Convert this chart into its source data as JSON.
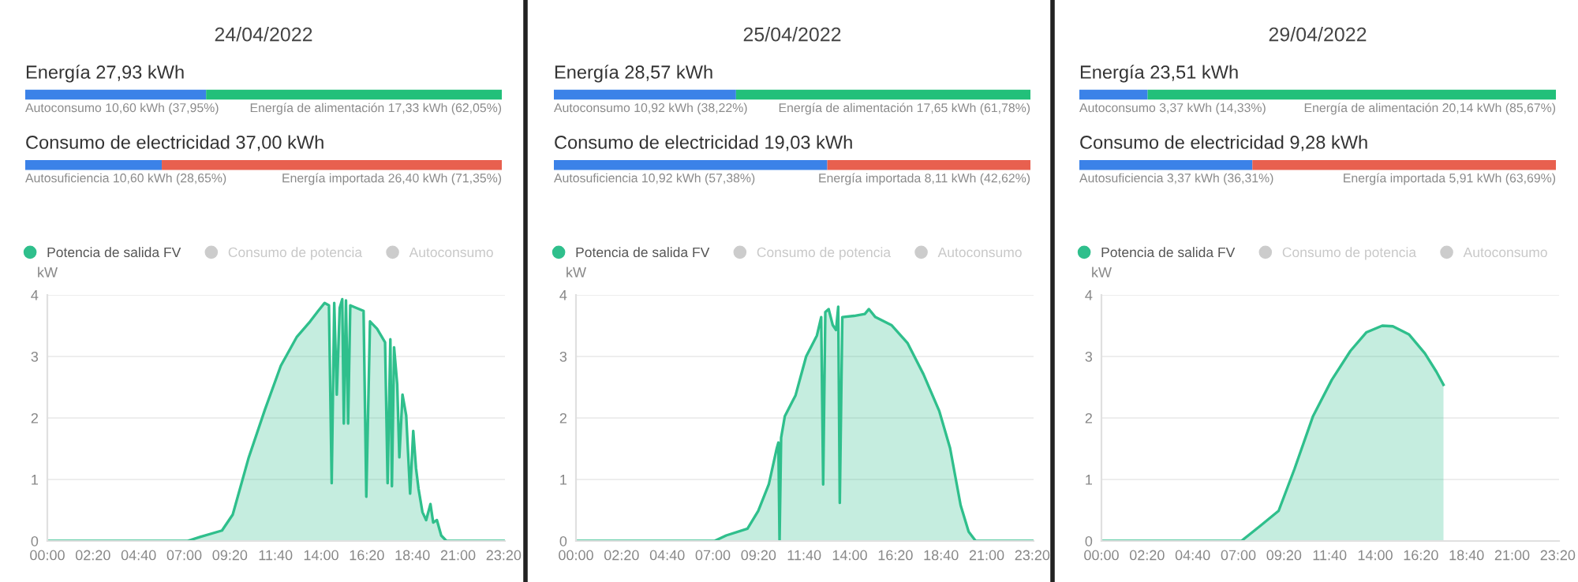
{
  "chart_data": [
    {
      "type": "bar",
      "title": "24/04/2022",
      "orientation": "horizontal",
      "stacked": true,
      "categories": [
        null,
        null
      ],
      "tick_labels": false,
      "totals": [
        "Energía 27,93 kWh",
        "Consumo de electricidad 37,00 kWh"
      ],
      "series": [
        {
          "color": "#3b82e8",
          "values": [
            37.95,
            28.65
          ],
          "value_labels": [
            "Autoconsumo 10,60 kWh (37,95%)",
            "Autosuficiencia 10,60 kWh (28,65%)"
          ]
        },
        {
          "colors": [
            "#22c07a",
            "#e8604f"
          ],
          "values": [
            62.05,
            71.35
          ],
          "value_labels": [
            "Energía de alimentación 17,33 kWh (62,05%)",
            "Energía importada 26,40 kWh (71,35%)"
          ]
        }
      ]
    },
    {
      "type": "area",
      "ylabel": "kW",
      "xlim": [
        0,
        23.4
      ],
      "ylim": [
        0,
        4
      ],
      "yticks": [
        0,
        1,
        2,
        3,
        4
      ],
      "grid": "y",
      "legend": "top left",
      "xticks": [
        {
          "value": 0,
          "label": "00:00"
        },
        {
          "value": 2.333,
          "label": "02:20"
        },
        {
          "value": 4.667,
          "label": "04:40"
        },
        {
          "value": 7,
          "label": "07:00"
        },
        {
          "value": 9.333,
          "label": "09:20"
        },
        {
          "value": 11.667,
          "label": "11:40"
        },
        {
          "value": 14,
          "label": "14:00"
        },
        {
          "value": 16.333,
          "label": "16:20"
        },
        {
          "value": 18.667,
          "label": "18:40"
        },
        {
          "value": 21,
          "label": "21:00"
        },
        {
          "value": 23.333,
          "label": "23:20"
        }
      ],
      "series": [
        {
          "name": "Potencia de salida FV",
          "color": "#2fbf8c",
          "x": [
            0,
            7.16,
            7.84,
            8.93,
            9.48,
            10.3,
            11.12,
            11.94,
            12.76,
            13.44,
            13.85,
            14.18,
            14.4,
            14.54,
            14.67,
            14.8,
            14.95,
            15.08,
            15.16,
            15.27,
            15.38,
            15.49,
            16.17,
            16.31,
            16.5,
            16.86,
            17.27,
            17.4,
            17.54,
            17.62,
            17.73,
            17.89,
            18.0,
            18.16,
            18.35,
            18.55,
            18.71,
            18.85,
            18.98,
            19.18,
            19.37,
            19.59,
            19.73,
            19.92,
            20.14,
            20.41,
            23.33
          ],
          "values": [
            0,
            0,
            0.07,
            0.17,
            0.43,
            1.36,
            2.13,
            2.85,
            3.32,
            3.57,
            3.74,
            3.87,
            3.83,
            0.94,
            3.87,
            2.38,
            3.79,
            3.93,
            1.91,
            3.91,
            1.91,
            3.83,
            3.74,
            0.72,
            3.57,
            3.45,
            3.23,
            0.94,
            3.28,
            0.89,
            3.15,
            2.55,
            1.36,
            2.38,
            2.04,
            0.77,
            1.79,
            1.19,
            0.85,
            0.47,
            0.34,
            0.6,
            0.3,
            0.34,
            0.09,
            0,
            0
          ]
        },
        {
          "name": "Consumo de potencia",
          "color": "#cccccc"
        },
        {
          "name": "Autoconsumo",
          "color": "#cccccc"
        }
      ]
    },
    {
      "type": "bar",
      "title": "25/04/2022",
      "orientation": "horizontal",
      "stacked": true,
      "categories": [
        null,
        null
      ],
      "tick_labels": false,
      "totals": [
        "Energía 28,57 kWh",
        "Consumo de electricidad 19,03 kWh"
      ],
      "series": [
        {
          "color": "#3b82e8",
          "values": [
            38.22,
            57.38
          ],
          "value_labels": [
            "Autoconsumo 10,92 kWh (38,22%)",
            "Autosuficiencia 10,92 kWh (57,38%)"
          ]
        },
        {
          "colors": [
            "#22c07a",
            "#e8604f"
          ],
          "values": [
            61.78,
            42.62
          ],
          "value_labels": [
            "Energía de alimentación 17,65 kWh (61,78%)",
            "Energía importada 8,11 kWh (42,62%)"
          ]
        }
      ]
    },
    {
      "type": "area",
      "ylabel": "kW",
      "xlim": [
        0,
        23.4
      ],
      "ylim": [
        0,
        4
      ],
      "yticks": [
        0,
        1,
        2,
        3,
        4
      ],
      "grid": "y",
      "legend": "top left",
      "xticks": [
        {
          "value": 0,
          "label": "00:00"
        },
        {
          "value": 2.333,
          "label": "02:20"
        },
        {
          "value": 4.667,
          "label": "04:40"
        },
        {
          "value": 7,
          "label": "07:00"
        },
        {
          "value": 9.333,
          "label": "09:20"
        },
        {
          "value": 11.667,
          "label": "11:40"
        },
        {
          "value": 14,
          "label": "14:00"
        },
        {
          "value": 16.333,
          "label": "16:20"
        },
        {
          "value": 18.667,
          "label": "18:40"
        },
        {
          "value": 21,
          "label": "21:00"
        },
        {
          "value": 23.333,
          "label": "23:20"
        }
      ],
      "series": [
        {
          "name": "Potencia de salida FV",
          "color": "#2fbf8c",
          "x": [
            0,
            7.08,
            7.68,
            8.77,
            9.32,
            9.86,
            10.27,
            10.35,
            10.41,
            10.49,
            10.68,
            11.23,
            11.77,
            12.32,
            12.54,
            12.64,
            12.75,
            12.92,
            13.13,
            13.3,
            13.41,
            13.49,
            13.62,
            14.22,
            14.77,
            14.98,
            15.31,
            16.13,
            16.95,
            17.77,
            18.58,
            19.13,
            19.67,
            20.08,
            20.44,
            23.33
          ],
          "values": [
            0,
            0,
            0.09,
            0.2,
            0.49,
            0.92,
            1.51,
            1.6,
            0,
            1.68,
            2.03,
            2.37,
            3.0,
            3.34,
            3.64,
            0.92,
            3.72,
            3.77,
            3.51,
            3.43,
            3.81,
            0.62,
            3.64,
            3.66,
            3.69,
            3.77,
            3.64,
            3.51,
            3.22,
            2.71,
            2.11,
            1.51,
            0.58,
            0.15,
            0,
            0
          ]
        },
        {
          "name": "Consumo de potencia",
          "color": "#cccccc"
        },
        {
          "name": "Autoconsumo",
          "color": "#cccccc"
        }
      ]
    },
    {
      "type": "bar",
      "title": "29/04/2022",
      "orientation": "horizontal",
      "stacked": true,
      "categories": [
        null,
        null
      ],
      "tick_labels": false,
      "totals": [
        "Energía 23,51 kWh",
        "Consumo de electricidad 9,28 kWh"
      ],
      "series": [
        {
          "color": "#3b82e8",
          "values": [
            14.33,
            36.31
          ],
          "value_labels": [
            "Autoconsumo 3,37 kWh (14,33%)",
            "Autosuficiencia 3,37 kWh (36,31%)"
          ]
        },
        {
          "colors": [
            "#22c07a",
            "#e8604f"
          ],
          "values": [
            85.67,
            63.69
          ],
          "value_labels": [
            "Energía de alimentación 20,14 kWh (85,67%)",
            "Energía importada 5,91 kWh (63,69%)"
          ]
        }
      ]
    },
    {
      "type": "area",
      "ylabel": "kW",
      "xlim": [
        0,
        23.4
      ],
      "ylim": [
        0,
        4
      ],
      "yticks": [
        0,
        1,
        2,
        3,
        4
      ],
      "grid": "y",
      "legend": "top left",
      "xticks": [
        {
          "value": 0,
          "label": "00:00"
        },
        {
          "value": 2.333,
          "label": "02:20"
        },
        {
          "value": 4.667,
          "label": "04:40"
        },
        {
          "value": 7,
          "label": "07:00"
        },
        {
          "value": 9.333,
          "label": "09:20"
        },
        {
          "value": 11.667,
          "label": "11:40"
        },
        {
          "value": 14,
          "label": "14:00"
        },
        {
          "value": 16.333,
          "label": "16:20"
        },
        {
          "value": 18.667,
          "label": "18:40"
        },
        {
          "value": 21,
          "label": "21:00"
        },
        {
          "value": 23.333,
          "label": "23:20"
        }
      ],
      "series": [
        {
          "name": "Potencia de salida FV",
          "color": "#2fbf8c",
          "x": [
            0,
            7.15,
            8.1,
            9.06,
            9.87,
            10.82,
            11.78,
            12.73,
            13.54,
            14.36,
            14.9,
            15.72,
            16.54,
            17.13,
            17.49
          ],
          "values": [
            0,
            0,
            0.24,
            0.49,
            1.17,
            2.03,
            2.62,
            3.09,
            3.39,
            3.5,
            3.49,
            3.36,
            3.05,
            2.75,
            2.54
          ]
        },
        {
          "name": "Consumo de potencia",
          "color": "#cccccc"
        },
        {
          "name": "Autoconsumo",
          "color": "#cccccc"
        }
      ]
    }
  ]
}
